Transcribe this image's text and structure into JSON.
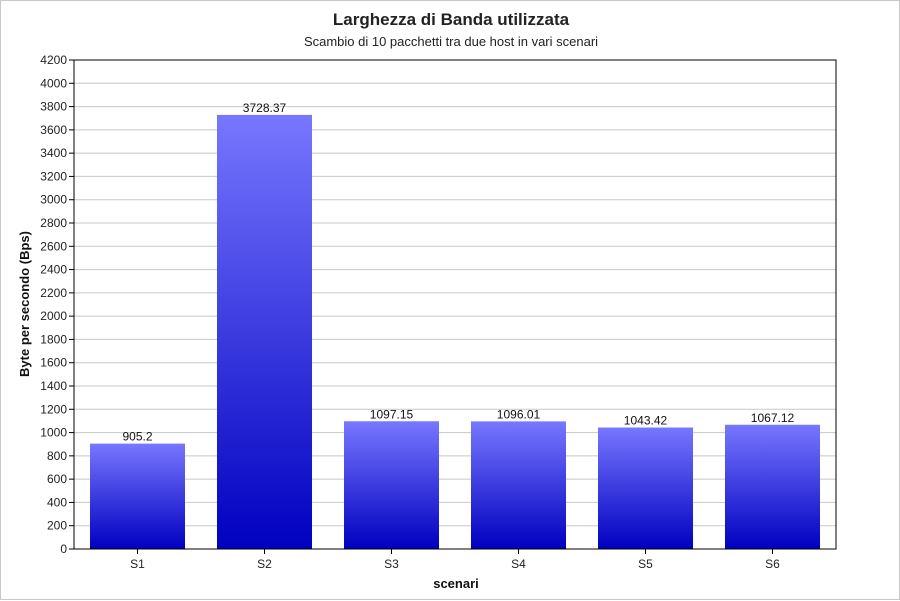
{
  "chart_data": {
    "type": "bar",
    "title": "Larghezza di Banda utilizzata",
    "subtitle": "Scambio di 10 pacchetti tra due host in vari scenari",
    "xlabel": "scenari",
    "ylabel": "Byte per secondo (Bps)",
    "categories": [
      "S1",
      "S2",
      "S3",
      "S4",
      "S5",
      "S6"
    ],
    "values": [
      905.2,
      3728.37,
      1097.15,
      1096.01,
      1043.42,
      1067.12
    ],
    "value_labels": [
      "905.2",
      "3728.37",
      "1097.15",
      "1096.01",
      "1043.42",
      "1067.12"
    ],
    "ylim": [
      0,
      4200
    ],
    "yticks": [
      0,
      200,
      400,
      600,
      800,
      1000,
      1200,
      1400,
      1600,
      1800,
      2000,
      2200,
      2400,
      2600,
      2800,
      3000,
      3200,
      3400,
      3600,
      3800,
      4000,
      4200
    ],
    "grid": true,
    "legend": "none",
    "colors": {
      "bar_top": "#7777ff",
      "bar_bottom": "#0000c0",
      "grid": "#c8c8c8"
    }
  }
}
